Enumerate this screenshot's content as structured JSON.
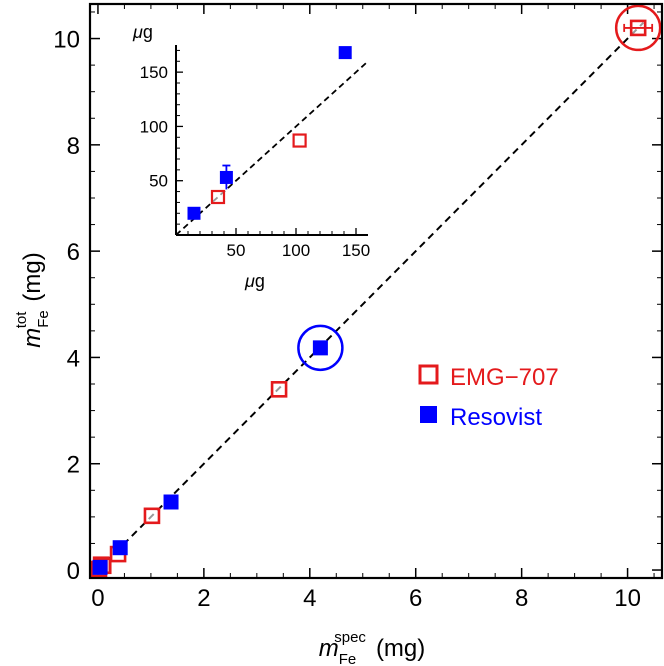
{
  "chart_data": {
    "type": "scatter",
    "main": {
      "xlabel": {
        "symbol": "m",
        "sub": "Fe",
        "sup": "spec",
        "unit": "(mg)"
      },
      "ylabel": {
        "symbol": "m",
        "sub": "Fe",
        "sup": "tot",
        "unit": "(mg)"
      },
      "xlim": [
        -0.15,
        10.65
      ],
      "ylim": [
        -0.15,
        10.65
      ],
      "x_ticks": [
        0,
        2,
        4,
        6,
        8,
        10
      ],
      "y_ticks": [
        0,
        2,
        4,
        6,
        8,
        10
      ],
      "reference_line": {
        "style": "dashed",
        "from": [
          0,
          0
        ],
        "to": [
          10.3,
          10.3
        ]
      },
      "series": [
        {
          "name": "EMG−707",
          "marker": "open-square",
          "color": "#e41a1c",
          "x": [
            0.02,
            0.06,
            0.1,
            0.38,
            1.02,
            3.42,
            10.2
          ],
          "y": [
            0.02,
            0.1,
            0.08,
            0.3,
            1.02,
            3.4,
            10.2
          ],
          "highlight_index": 6
        },
        {
          "name": "Resovist",
          "marker": "filled-square",
          "color": "#0000ff",
          "x": [
            0.04,
            0.42,
            1.38,
            4.2
          ],
          "y": [
            0.05,
            0.42,
            1.28,
            4.18
          ],
          "highlight_index": 3
        }
      ],
      "legend": {
        "position": "right-middle",
        "entries": [
          "EMG−707",
          "Resovist"
        ]
      }
    },
    "inset": {
      "xlabel": {
        "symbol": "μ",
        "text": "g"
      },
      "ylabel": {
        "symbol": "μ",
        "text": "g"
      },
      "xlim": [
        0,
        160
      ],
      "ylim": [
        0,
        175
      ],
      "x_ticks": [
        50,
        100,
        150
      ],
      "y_ticks": [
        50,
        100,
        150
      ],
      "reference_line": {
        "style": "dashed",
        "from": [
          0,
          0
        ],
        "to": [
          160,
          160
        ]
      },
      "series": [
        {
          "name": "EMG−707",
          "marker": "open-square",
          "color": "#e41a1c",
          "x": [
            35,
            103
          ],
          "y": [
            35,
            87
          ],
          "yerr": [
            0,
            0
          ]
        },
        {
          "name": "Resovist",
          "marker": "filled-square",
          "color": "#0000ff",
          "x": [
            15,
            42,
            141
          ],
          "y": [
            20,
            53,
            168
          ],
          "yerr": [
            0,
            11,
            0
          ]
        }
      ]
    }
  }
}
